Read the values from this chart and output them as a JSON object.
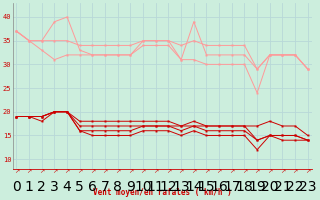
{
  "background_color": "#cceedd",
  "grid_color": "#aacccc",
  "x_values": [
    0,
    1,
    2,
    3,
    4,
    5,
    6,
    7,
    8,
    9,
    10,
    11,
    12,
    13,
    14,
    15,
    16,
    17,
    18,
    19,
    20,
    21,
    22,
    23
  ],
  "light_series": [
    [
      37,
      35,
      35,
      39,
      40,
      33,
      32,
      32,
      32,
      32,
      35,
      35,
      35,
      31,
      39,
      32,
      32,
      32,
      32,
      29,
      32,
      32,
      32,
      29
    ],
    [
      37,
      35,
      35,
      35,
      35,
      34,
      34,
      34,
      34,
      34,
      35,
      35,
      35,
      34,
      35,
      34,
      34,
      34,
      34,
      29,
      32,
      32,
      32,
      29
    ],
    [
      37,
      35,
      33,
      31,
      32,
      32,
      32,
      32,
      32,
      32,
      34,
      34,
      34,
      31,
      31,
      30,
      30,
      30,
      30,
      24,
      32,
      32,
      32,
      29
    ]
  ],
  "dark_series": [
    [
      19,
      19,
      19,
      20,
      20,
      18,
      18,
      18,
      18,
      18,
      18,
      18,
      18,
      17,
      18,
      17,
      17,
      17,
      17,
      17,
      18,
      17,
      17,
      15
    ],
    [
      19,
      19,
      19,
      20,
      20,
      17,
      17,
      17,
      17,
      17,
      17,
      17,
      17,
      17,
      17,
      17,
      17,
      17,
      17,
      14,
      15,
      15,
      15,
      14
    ],
    [
      19,
      19,
      19,
      20,
      20,
      16,
      16,
      16,
      16,
      16,
      17,
      17,
      17,
      16,
      17,
      16,
      16,
      16,
      16,
      14,
      15,
      15,
      15,
      14
    ],
    [
      19,
      19,
      18,
      20,
      20,
      16,
      15,
      15,
      15,
      15,
      16,
      16,
      16,
      15,
      16,
      15,
      15,
      15,
      15,
      12,
      15,
      14,
      14,
      14
    ]
  ],
  "light_color": "#ff9999",
  "dark_color": "#cc0000",
  "xlabel": "Vent moyen/en rafales ( km/h )",
  "yticks": [
    10,
    15,
    20,
    25,
    30,
    35,
    40
  ],
  "ylim": [
    8,
    43
  ],
  "xlim": [
    -0.3,
    23.3
  ]
}
